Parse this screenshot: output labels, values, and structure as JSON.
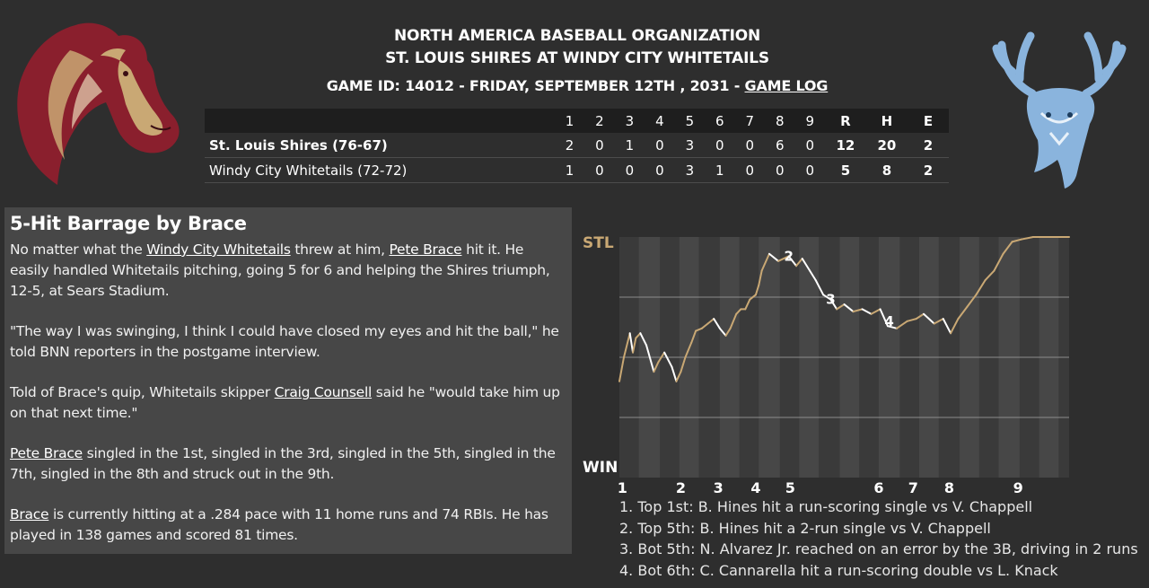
{
  "header": {
    "org": "NORTH AMERICA BASEBALL ORGANIZATION",
    "matchup": "ST. LOUIS SHIRES AT WINDY CITY WHITETAILS",
    "game_info": "GAME ID: 14012 - FRIDAY, SEPTEMBER 12TH , 2031 - ",
    "game_log_link": "GAME LOG"
  },
  "logos": {
    "away_icon": "horse-head-logo",
    "home_icon": "deer-head-logo",
    "away_color": "#8a1f2d",
    "away_accent": "#c9a874",
    "home_color": "#8ab4dd"
  },
  "linescore": {
    "columns": [
      "1",
      "2",
      "3",
      "4",
      "5",
      "6",
      "7",
      "8",
      "9",
      "R",
      "H",
      "E"
    ],
    "teams": [
      {
        "name": "St. Louis Shires (76-67)",
        "innings": [
          "2",
          "0",
          "1",
          "0",
          "3",
          "0",
          "0",
          "6",
          "0"
        ],
        "r": "12",
        "h": "20",
        "e": "2"
      },
      {
        "name": "Windy City Whitetails (72-72)",
        "innings": [
          "1",
          "0",
          "0",
          "0",
          "3",
          "1",
          "0",
          "0",
          "0"
        ],
        "r": "5",
        "h": "8",
        "e": "2"
      }
    ]
  },
  "article": {
    "title": "5-Hit Barrage by Brace",
    "p1": {
      "a": "No matter what the ",
      "link1": "Windy City Whitetails",
      "b": " threw at him, ",
      "link2": "Pete Brace",
      "c": " hit it. He easily handled Whitetails pitching, going 5 for 6 and helping the Shires triumph, 12-5, at Sears Stadium."
    },
    "p2": "\"The way I was swinging, I think I could have closed my eyes and hit the ball,\" he told BNN reporters in the postgame interview.",
    "p3": {
      "a": "Told of Brace's quip, Whitetails skipper ",
      "link": "Craig Counsell",
      "b": " said he \"would take him up on that next time.\""
    },
    "p4": {
      "link": "Pete Brace",
      "b": " singled in the 1st, singled in the 3rd, singled in the 5th, singled in the 7th, singled in the 8th and struck out in the 9th."
    },
    "p5": {
      "link": "Brace",
      "b": " is currently hitting at a .284 pace with 11 home runs and 74 RBIs. He has played in 138 games and scored 81 times."
    }
  },
  "chart_data": {
    "type": "line",
    "top_label": "STL",
    "bottom_label": "WIN",
    "innings": [
      "1",
      "2",
      "3",
      "4",
      "5",
      "6",
      "7",
      "8",
      "9"
    ],
    "ylim": [
      0,
      1
    ],
    "away_color": "#c9a874",
    "home_color": "#ffffff",
    "series": [
      {
        "values": [
          [
            0.0,
            0.4
          ],
          [
            0.03,
            0.5
          ],
          [
            0.07,
            0.6
          ],
          [
            0.09,
            0.52
          ],
          [
            0.11,
            0.58
          ],
          [
            0.14,
            0.6
          ],
          [
            0.18,
            0.55
          ],
          [
            0.23,
            0.44
          ],
          [
            0.26,
            0.48
          ],
          [
            0.3,
            0.52
          ],
          [
            0.35,
            0.46
          ],
          [
            0.38,
            0.4
          ],
          [
            0.41,
            0.44
          ],
          [
            0.44,
            0.5
          ],
          [
            0.48,
            0.56
          ],
          [
            0.51,
            0.61
          ],
          [
            0.55,
            0.62
          ],
          [
            0.59,
            0.64
          ],
          [
            0.63,
            0.66
          ],
          [
            0.67,
            0.62
          ],
          [
            0.71,
            0.59
          ],
          [
            0.74,
            0.62
          ],
          [
            0.78,
            0.68
          ],
          [
            0.81,
            0.7
          ],
          [
            0.84,
            0.7
          ],
          [
            0.87,
            0.74
          ],
          [
            0.91,
            0.76
          ],
          [
            0.93,
            0.8
          ],
          [
            0.95,
            0.86
          ],
          [
            1.0,
            0.93
          ],
          [
            1.06,
            0.9
          ],
          [
            1.13,
            0.92
          ],
          [
            1.18,
            0.88
          ],
          [
            1.22,
            0.91
          ],
          [
            1.27,
            0.86
          ],
          [
            1.31,
            0.82
          ],
          [
            1.36,
            0.76
          ],
          [
            1.41,
            0.74
          ],
          [
            1.45,
            0.7
          ],
          [
            1.5,
            0.72
          ],
          [
            1.56,
            0.69
          ],
          [
            1.62,
            0.7
          ],
          [
            1.68,
            0.68
          ],
          [
            1.74,
            0.7
          ],
          [
            1.79,
            0.63
          ],
          [
            1.85,
            0.62
          ],
          [
            1.92,
            0.65
          ],
          [
            1.98,
            0.66
          ],
          [
            2.03,
            0.68
          ],
          [
            2.1,
            0.64
          ],
          [
            2.16,
            0.66
          ],
          [
            2.21,
            0.6
          ],
          [
            2.26,
            0.66
          ],
          [
            2.32,
            0.71
          ],
          [
            2.38,
            0.76
          ],
          [
            2.44,
            0.82
          ],
          [
            2.5,
            0.86
          ],
          [
            2.56,
            0.93
          ],
          [
            2.62,
            0.98
          ],
          [
            2.68,
            0.99
          ],
          [
            2.76,
            1.0
          ],
          [
            2.95,
            1.0
          ],
          [
            3.0,
            1.0
          ]
        ]
      }
    ],
    "annotations": [
      "2",
      "3",
      "4"
    ]
  },
  "legend": [
    "1. Top 1st: B. Hines hit a run-scoring single vs V. Chappell",
    "2. Top 5th: B. Hines hit a 2-run single vs V. Chappell",
    "3. Bot 5th: N. Alvarez Jr. reached on an error by the 3B, driving in 2 runs",
    "4. Bot 6th: C. Cannarella hit a run-scoring double vs L. Knack"
  ]
}
